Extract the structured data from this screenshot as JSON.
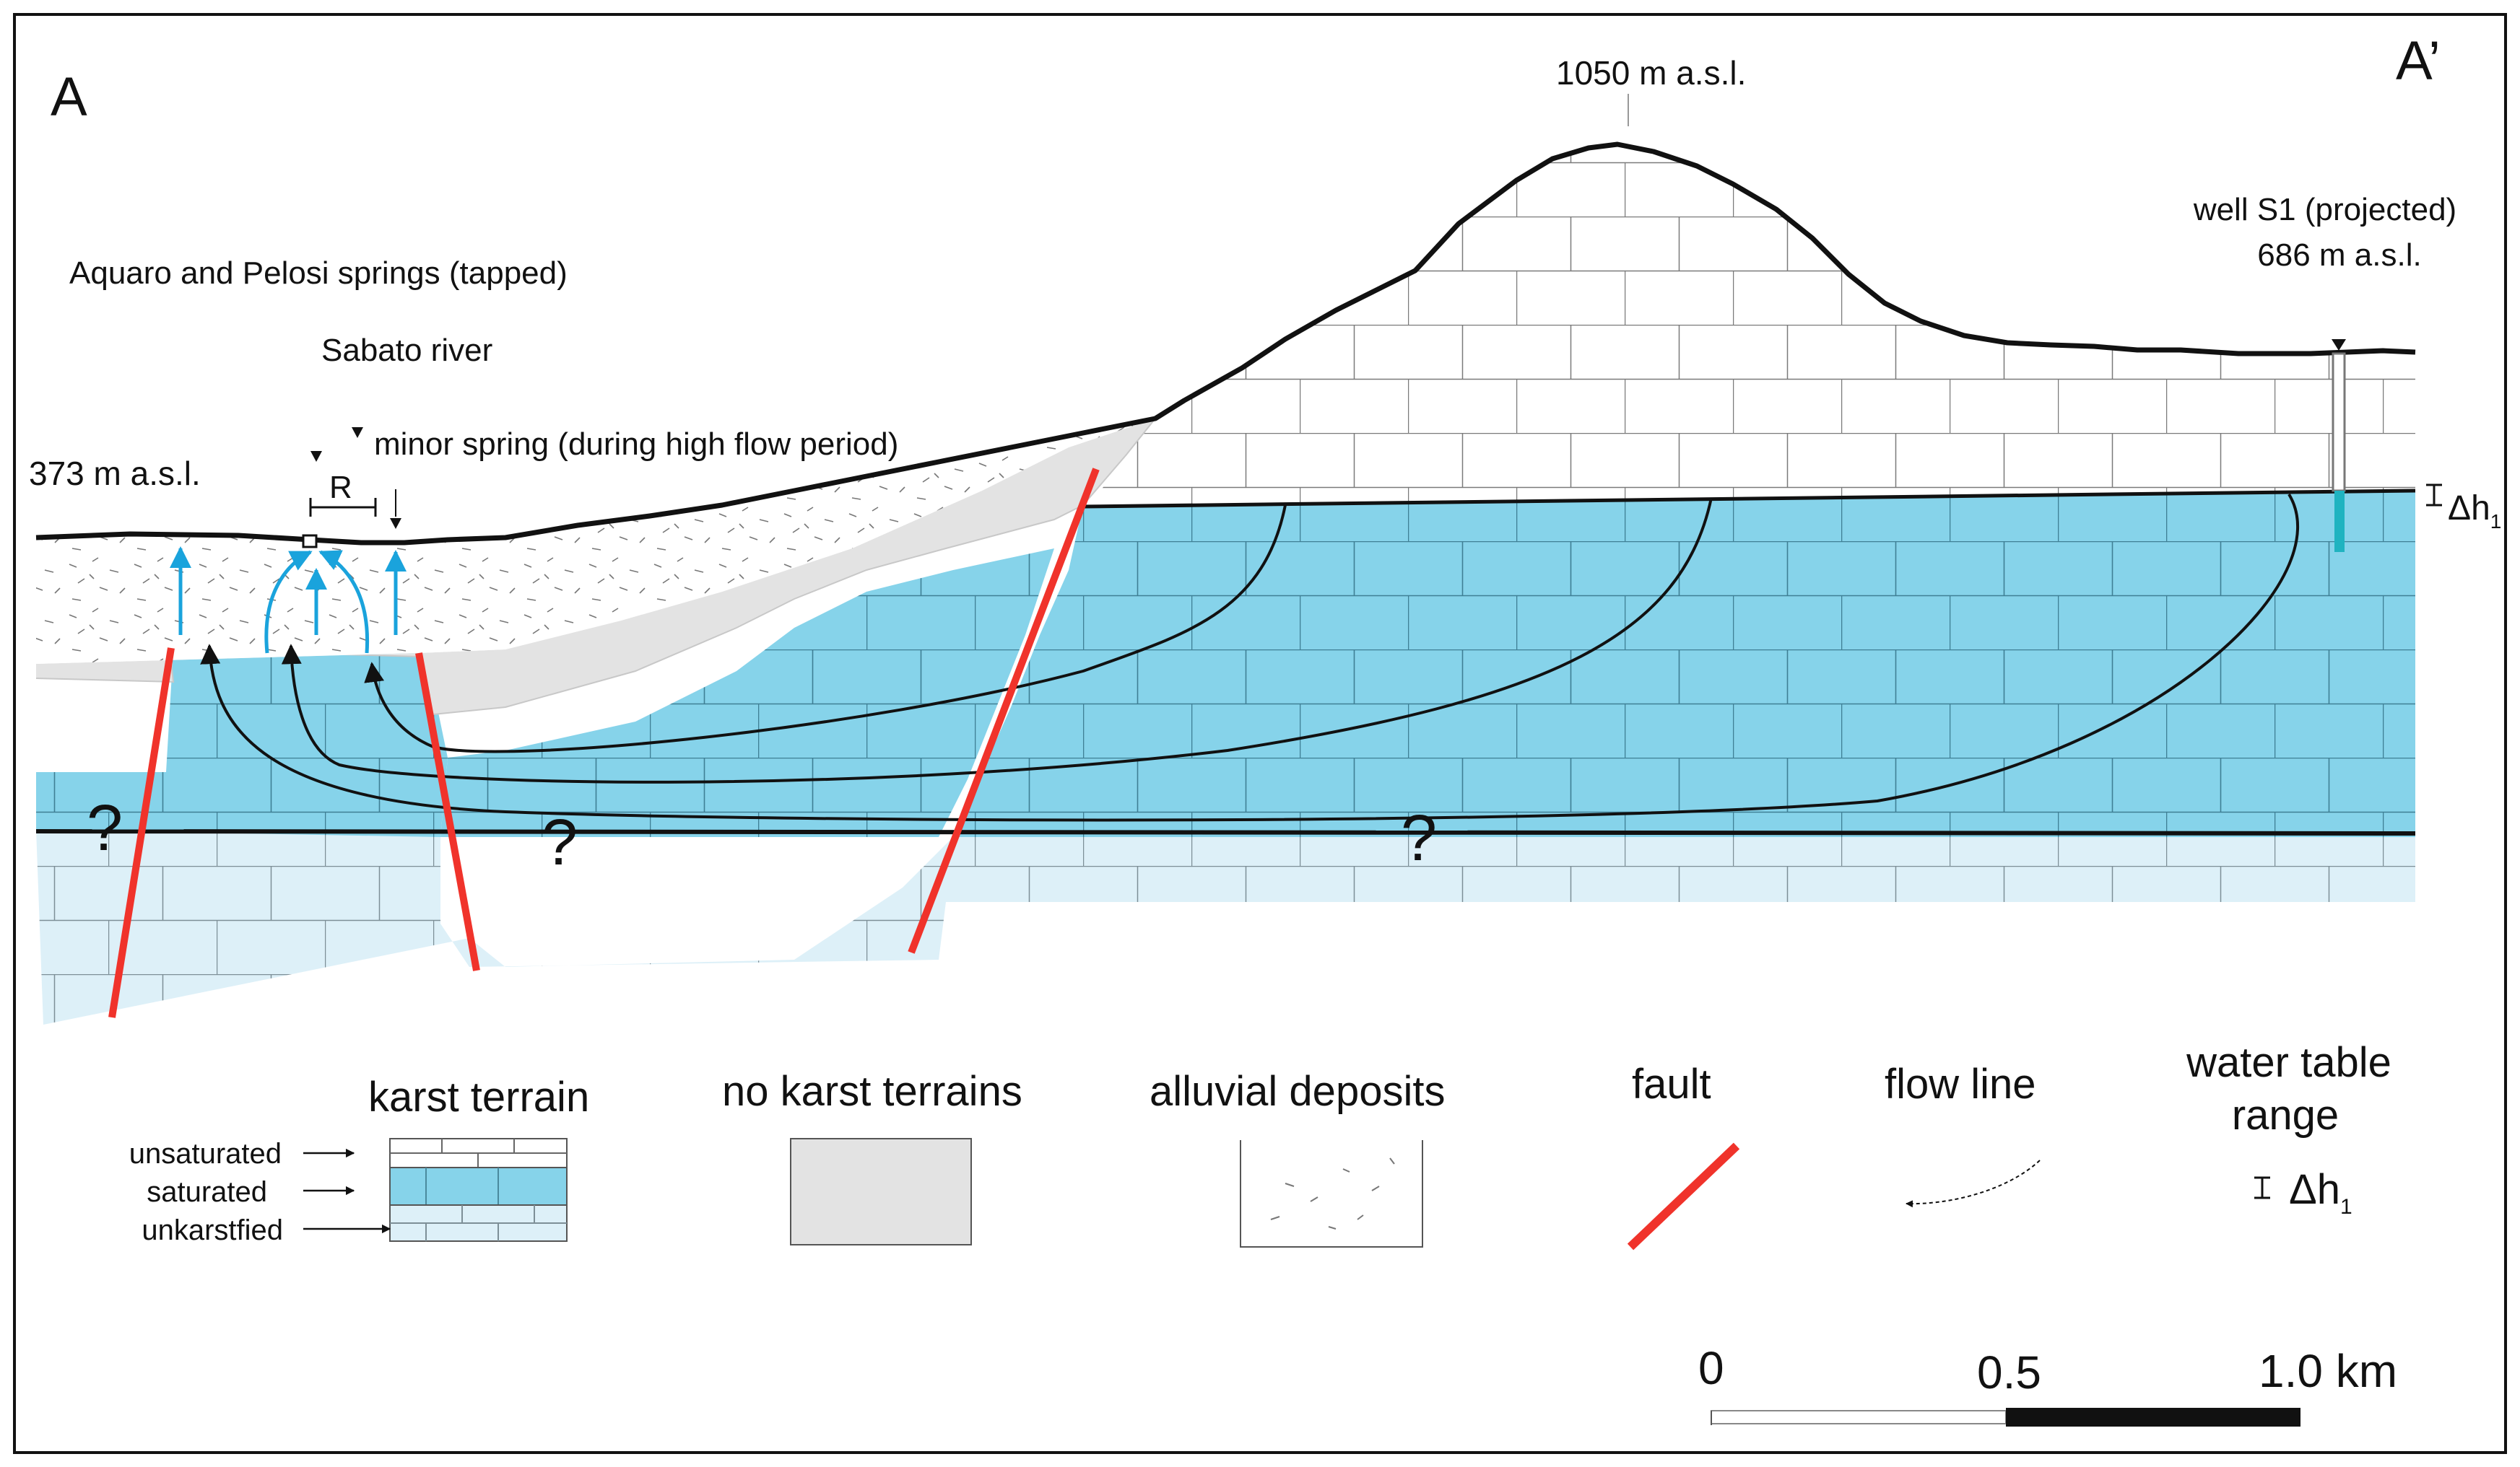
{
  "section": {
    "start_label": "A",
    "end_label": "A’"
  },
  "annotations": {
    "peak": "1050 m a.s.l.",
    "springs": "Aquaro and Pelosi springs (tapped)",
    "river": "Sabato river",
    "minor_spring": "minor spring (during high flow period)",
    "left_elevation": "373 m a.s.l.",
    "river_width": "R",
    "well_name": "well S1 (projected)",
    "well_elevation": "686 m a.s.l.",
    "delta_symbol": "Δh",
    "delta_subscript": "1",
    "unknown": "?"
  },
  "legend": {
    "karst_terrain": "karst terrain",
    "unsaturated": "unsaturated",
    "saturated": "saturated",
    "unkarstified": "unkarstfied",
    "no_karst": "no karst terrains",
    "alluvial": "alluvial deposits",
    "fault": "fault",
    "flow_line": "flow line",
    "water_table_line1": "water table",
    "water_table_line2": "range",
    "delta_symbol": "Δh",
    "delta_subscript": "1"
  },
  "scale_bar": {
    "zero": "0",
    "mid": "0.5",
    "end": "1.0 km"
  },
  "colors": {
    "saturated": "#86d3ea",
    "unkarstified": "#ddf0f8",
    "no_karst": "#e3e3e3",
    "fault": "#f0332b",
    "spring_arrow": "#1aa3dc",
    "well_water": "#1fb3c0",
    "outline": "#111111"
  }
}
